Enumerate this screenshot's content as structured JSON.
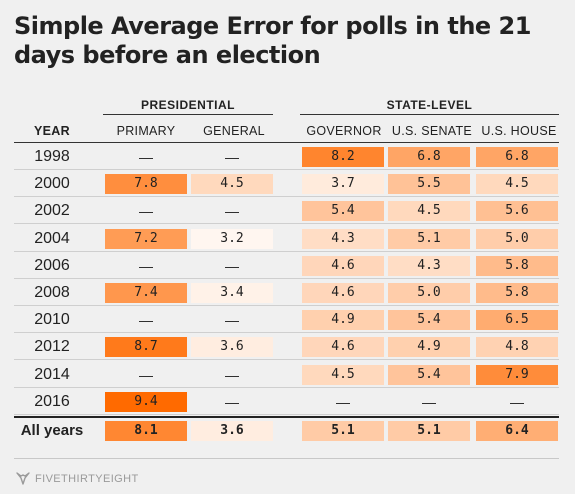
{
  "title": "Simple Average Error for polls in the 21 days before an election",
  "groups": {
    "presidential": "PRESIDENTIAL",
    "state": "STATE-LEVEL"
  },
  "headers": {
    "year": "YEAR",
    "primary": "PRIMARY",
    "general": "GENERAL",
    "governor": "GOVERNOR",
    "senate": "U.S. SENATE",
    "house": "U.S. HOUSE"
  },
  "colors": {
    "scale_low": "#ffffff",
    "scale_high": "#ff6a00"
  },
  "brand": "FIVETHIRTYEIGHT",
  "chart_data": {
    "type": "table",
    "title": "Simple Average Error for polls in the 21 days before an election",
    "columns": [
      "YEAR",
      "PRIMARY",
      "GENERAL",
      "GOVERNOR",
      "U.S. SENATE",
      "U.S. HOUSE"
    ],
    "rows": [
      {
        "year": "1998",
        "values": [
          "—",
          "—",
          "8.2",
          "6.8",
          "6.8"
        ]
      },
      {
        "year": "2000",
        "values": [
          "7.8",
          "4.5",
          "3.7",
          "5.5",
          "4.5"
        ]
      },
      {
        "year": "2002",
        "values": [
          "—",
          "—",
          "5.4",
          "4.5",
          "5.6"
        ]
      },
      {
        "year": "2004",
        "values": [
          "7.2",
          "3.2",
          "4.3",
          "5.1",
          "5.0"
        ]
      },
      {
        "year": "2006",
        "values": [
          "—",
          "—",
          "4.6",
          "4.3",
          "5.8"
        ]
      },
      {
        "year": "2008",
        "values": [
          "7.4",
          "3.4",
          "4.6",
          "5.0",
          "5.8"
        ]
      },
      {
        "year": "2010",
        "values": [
          "—",
          "—",
          "4.9",
          "5.4",
          "6.5"
        ]
      },
      {
        "year": "2012",
        "values": [
          "8.7",
          "3.6",
          "4.6",
          "4.9",
          "4.8"
        ]
      },
      {
        "year": "2014",
        "values": [
          "—",
          "—",
          "4.5",
          "5.4",
          "7.9"
        ]
      },
      {
        "year": "2016",
        "values": [
          "9.4",
          "—",
          "—",
          "—",
          "—"
        ]
      }
    ],
    "summary": {
      "year": "All years",
      "values": [
        "8.1",
        "3.6",
        "5.1",
        "5.1",
        "6.4"
      ]
    },
    "color_range": [
      3.2,
      9.4
    ]
  }
}
